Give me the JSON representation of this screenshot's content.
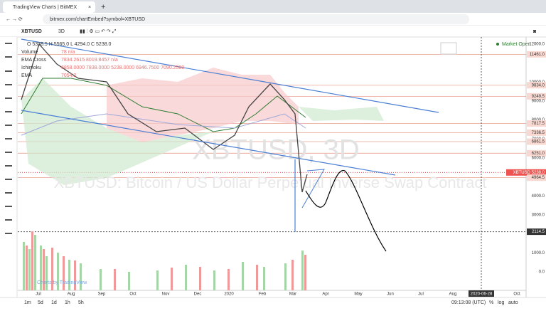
{
  "browser": {
    "tab_title": "TradingView Charts | BitMEX",
    "url": "bitmex.com/chartEmbed?symbol=XBTUSD"
  },
  "toolbar": {
    "symbol": "XBTUSD",
    "interval": "3D"
  },
  "legend": {
    "ohlc": "O 5338.5 H 5565.0 L 4294.0 C 5238.0",
    "rows": [
      {
        "name": "Volume",
        "values": "78 n/a"
      },
      {
        "name": "EMA Cross",
        "values": "7834.2615 8019.8457 n/a"
      },
      {
        "name": "Ichimoku",
        "values": "6858.0000 7838.0000 5238.0000 6946.7500 7090.2500"
      },
      {
        "name": "EMA",
        "values": "7054.2"
      }
    ]
  },
  "watermark": {
    "symbol": "XBTUSD, 3D",
    "description": "XBTUSD: Bitcoin / US Dollar Perpetual Inverse Swap Contract"
  },
  "market_status": "Market Open",
  "price_axis": [
    {
      "value": 12000,
      "label": "12000.0"
    },
    {
      "value": 11461,
      "label": "11461.0",
      "level": true
    },
    {
      "value": 10000,
      "label": "10000.0"
    },
    {
      "value": 9834,
      "label": "9834.0",
      "level": true
    },
    {
      "value": 9249.5,
      "label": "9249.5",
      "level": true
    },
    {
      "value": 9000,
      "label": "9000.0"
    },
    {
      "value": 8000,
      "label": "8000.0"
    },
    {
      "value": 7817.5,
      "label": "7817.5",
      "level": true
    },
    {
      "value": 7336.5,
      "label": "7336.5",
      "level": true
    },
    {
      "value": 7000,
      "label": "7000.0"
    },
    {
      "value": 6861.5,
      "label": "6861.5",
      "level": true
    },
    {
      "value": 6251,
      "label": "6251.0",
      "level": true
    },
    {
      "value": 6000,
      "label": "6000.0"
    },
    {
      "value": 5238,
      "label": "XBTUSD 5238.0",
      "current": true
    },
    {
      "value": 4964.5,
      "label": "4964.5",
      "level": true
    },
    {
      "value": 4000,
      "label": "4000.0"
    },
    {
      "value": 3000,
      "label": "3000.0"
    },
    {
      "value": 2114.5,
      "label": "2114.5",
      "cursor": true
    },
    {
      "value": 1000,
      "label": "1000.0"
    },
    {
      "value": 0,
      "label": "0.0"
    }
  ],
  "time_axis": [
    "Jul",
    "Aug",
    "Sep",
    "Oct",
    "Nov",
    "Dec",
    "2020",
    "Feb",
    "Mar",
    "Apr",
    "May",
    "Jun",
    "Jul",
    "Aug",
    "2020-06-28",
    "Oct"
  ],
  "credit": "Charts by TradingView",
  "ranges": [
    "1m",
    "5d",
    "1d",
    "1h",
    "5h"
  ],
  "status_bar": {
    "clock": "09:13:08 (UTC)",
    "percent": "%",
    "log": "log",
    "auto": "auto"
  }
}
